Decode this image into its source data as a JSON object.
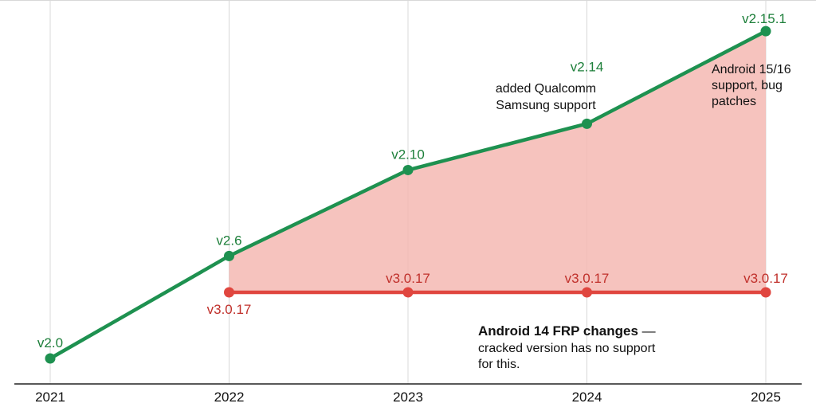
{
  "chart_data": {
    "type": "line",
    "title": "",
    "xlabel": "",
    "ylabel": "",
    "x": [
      2021,
      2022,
      2023,
      2024,
      2025
    ],
    "xlim": [
      2021,
      2025
    ],
    "grid": "vertical",
    "colors": {
      "green": "#1e9150",
      "green_text": "#1d7f3a",
      "red": "#e0463f",
      "red_text": "#c0302b",
      "fill": "#f5b8b3"
    },
    "series": [
      {
        "key": "official",
        "x": [
          2021,
          2022,
          2023,
          2024,
          2025
        ],
        "values": [
          0,
          1.55,
          2.85,
          3.55,
          4.95
        ],
        "labels": [
          "v2.0",
          "v2.6",
          "v2.10",
          "v2.14",
          "v2.15.1"
        ]
      },
      {
        "key": "cracked",
        "x": [
          2022,
          2023,
          2024,
          2025
        ],
        "values": [
          1.0,
          1.0,
          1.0,
          1.0
        ],
        "labels": [
          "v3.0.17",
          "v3.0.17",
          "v3.0.17",
          "v3.0.17"
        ]
      }
    ],
    "annotations": {
      "v214_note": [
        "added Qualcomm",
        "Samsung support"
      ],
      "v2151_note": [
        "Android 15/16",
        "support, bug",
        "patches"
      ],
      "frp_title": "Android 14 FRP changes",
      "frp_dash": " —",
      "frp_note": [
        "cracked version has no support",
        "for this."
      ]
    }
  }
}
